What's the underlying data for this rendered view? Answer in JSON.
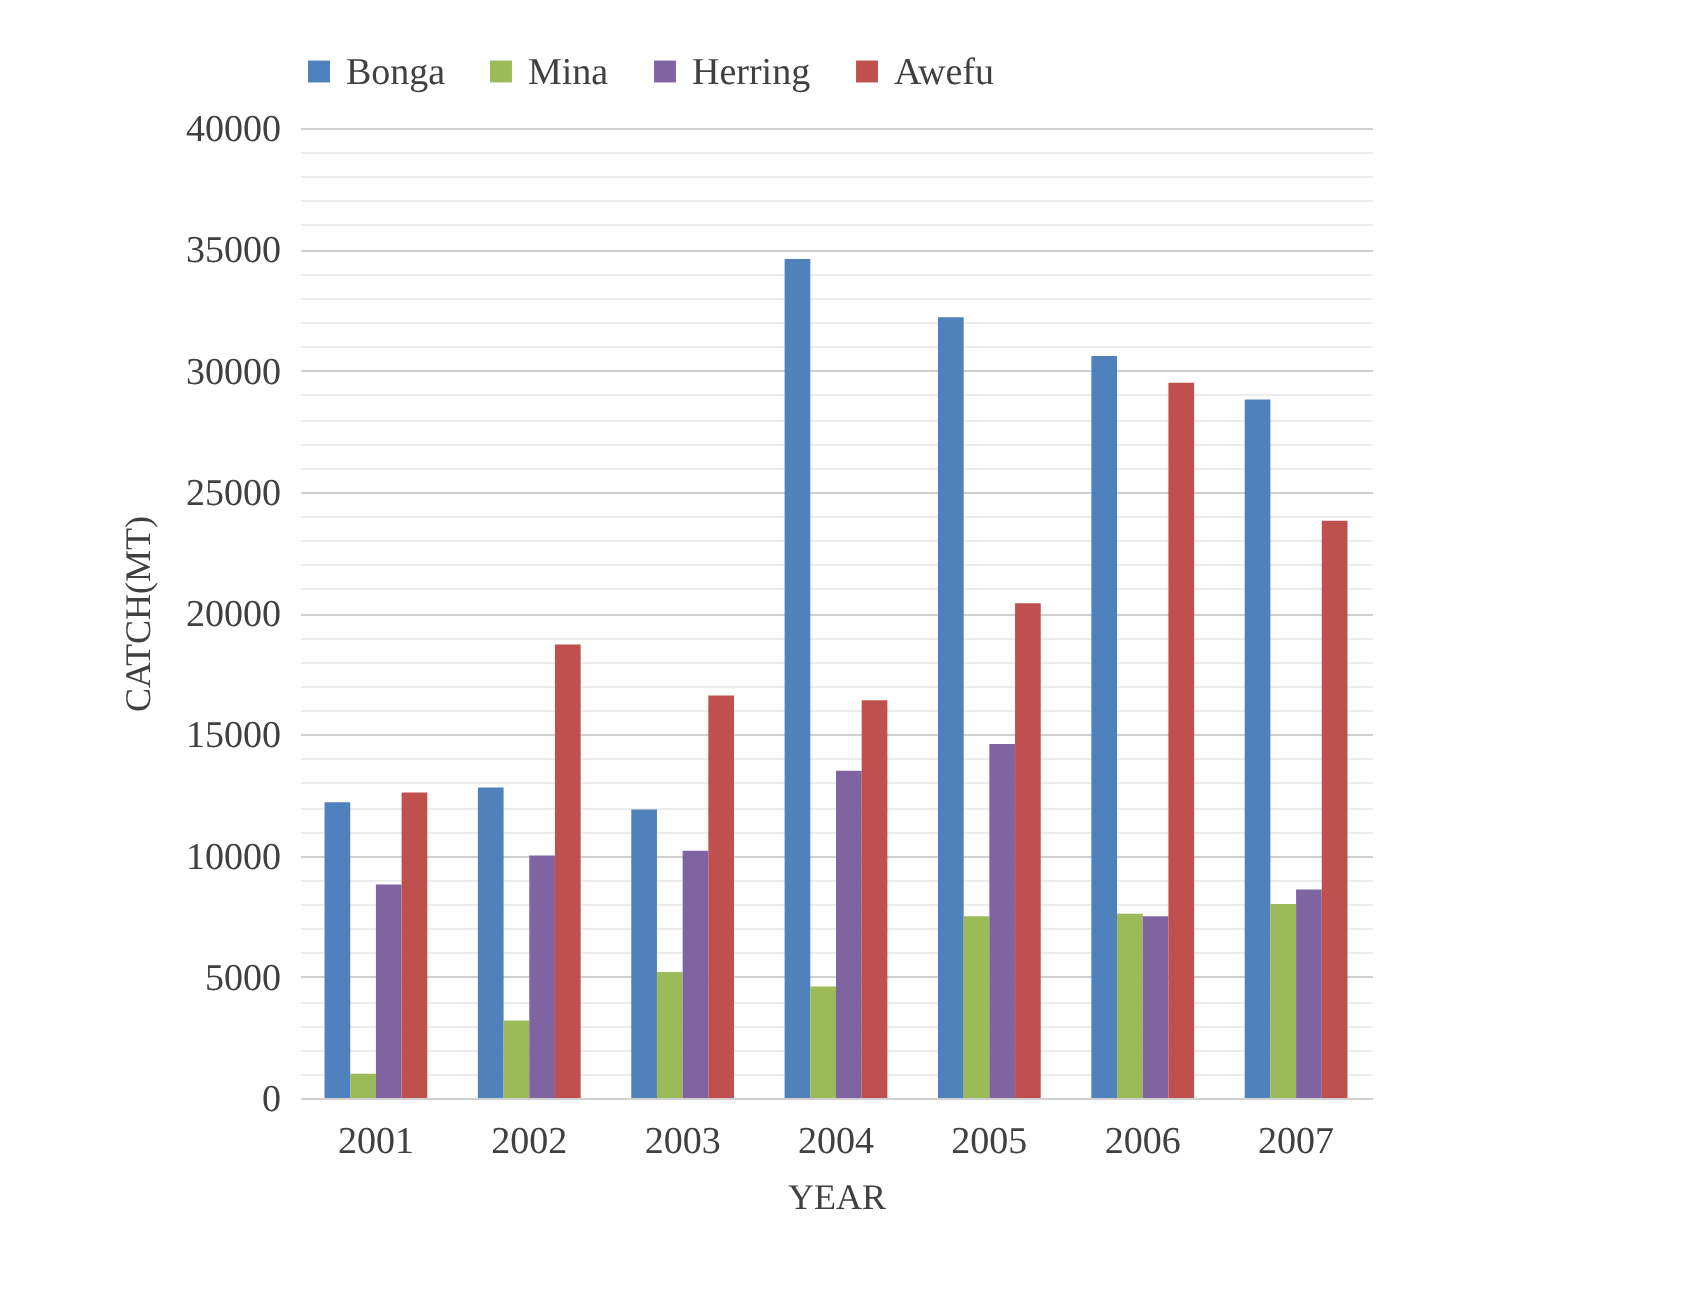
{
  "chart_data": {
    "type": "bar",
    "xlabel": "YEAR",
    "ylabel": "CATCH(MT)",
    "categories": [
      "2001",
      "2002",
      "2003",
      "2004",
      "2005",
      "2006",
      "2007"
    ],
    "series": [
      {
        "name": "Bonga",
        "color": "#4f81bd",
        "values": [
          12200,
          12800,
          11900,
          34600,
          32200,
          30600,
          28800
        ]
      },
      {
        "name": "Mina",
        "color": "#9bbb59",
        "values": [
          1000,
          3200,
          5200,
          4600,
          7500,
          7600,
          8000
        ]
      },
      {
        "name": "Herring",
        "color": "#8064a2",
        "values": [
          8800,
          10000,
          10200,
          13500,
          14600,
          7500,
          8600
        ]
      },
      {
        "name": "Awefu",
        "color": "#c0504d",
        "values": [
          12600,
          18700,
          16600,
          16400,
          20400,
          29500,
          23800
        ]
      }
    ],
    "ylim": [
      0,
      40000
    ],
    "yticks": [
      0,
      {
        "value": 1000,
        "label": null
      },
      {
        "value": 2000,
        "label": null
      },
      {
        "value": 3000,
        "label": null
      },
      {
        "value": 4000,
        "label": null
      },
      5000,
      {
        "value": 6000,
        "label": null
      },
      {
        "value": 7000,
        "label": null
      },
      {
        "value": 8000,
        "label": null
      },
      {
        "value": 9000,
        "label": null
      },
      10000,
      {
        "value": 11000,
        "label": null
      },
      {
        "value": 12000,
        "label": null
      },
      {
        "value": 13000,
        "label": null
      },
      {
        "value": 14000,
        "label": null
      },
      15000,
      {
        "value": 16000,
        "label": null
      },
      {
        "value": 17000,
        "label": null
      },
      {
        "value": 18000,
        "label": null
      },
      {
        "value": 19000,
        "label": null
      },
      20000,
      {
        "value": 21000,
        "label": null
      },
      {
        "value": 22000,
        "label": null
      },
      {
        "value": 23000,
        "label": null
      },
      {
        "value": 24000,
        "label": null
      },
      25000,
      {
        "value": 26000,
        "label": null
      },
      {
        "value": 27000,
        "label": null
      },
      {
        "value": 28000,
        "label": null
      },
      {
        "value": 29000,
        "label": null
      },
      30000,
      {
        "value": 31000,
        "label": null
      },
      {
        "value": 32000,
        "label": null
      },
      {
        "value": 33000,
        "label": null
      },
      {
        "value": 34000,
        "label": null
      },
      35000,
      {
        "value": 36000,
        "label": null
      },
      {
        "value": 37000,
        "label": null
      },
      {
        "value": 38000,
        "label": null
      },
      {
        "value": 39000,
        "label": null
      },
      40000
    ],
    "grid": "y",
    "legend": "top"
  }
}
